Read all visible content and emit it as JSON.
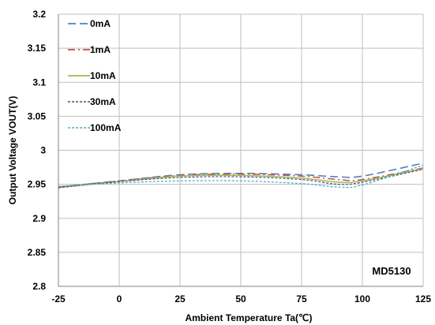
{
  "chart_data": {
    "type": "line",
    "xlabel": "Ambient Temperature Ta(℃)",
    "ylabel": "Output Voltage VOUT(V)",
    "xlim": [
      -25,
      125
    ],
    "ylim": [
      2.8,
      3.2
    ],
    "xticks": [
      -25,
      0,
      25,
      50,
      75,
      100,
      125
    ],
    "yticks": [
      2.8,
      2.85,
      2.9,
      2.95,
      3.0,
      3.05,
      3.1,
      3.15,
      3.2
    ],
    "xtick_labels": [
      "-25",
      "0",
      "25",
      "50",
      "75",
      "100",
      "125"
    ],
    "ytick_labels": [
      "2.8",
      "2.85",
      "2.9",
      "2.95",
      "3",
      "3.05",
      "3.1",
      "3.15",
      "3.2"
    ],
    "grid": true,
    "legend_position": "top-left",
    "annotation": "MD5130",
    "x": [
      -25,
      0,
      25,
      50,
      75,
      90,
      100,
      125
    ],
    "series": [
      {
        "name": "0mA",
        "color": "#4F81BD",
        "dash": "10,5",
        "width": 1.6,
        "values": [
          2.946,
          2.955,
          2.964,
          2.966,
          2.964,
          2.961,
          2.962,
          2.981
        ]
      },
      {
        "name": "1mA",
        "color": "#C0504D",
        "dash": "9,4,2,4",
        "width": 1.5,
        "values": [
          2.946,
          2.955,
          2.963,
          2.965,
          2.962,
          2.957,
          2.957,
          2.974
        ]
      },
      {
        "name": "10mA",
        "color": "#9BBB59",
        "dash": "",
        "width": 1.5,
        "values": [
          2.945,
          2.954,
          2.962,
          2.963,
          2.959,
          2.953,
          2.955,
          2.973
        ]
      },
      {
        "name": "30mA",
        "color": "#5A4A7A",
        "dash": "3,2",
        "width": 1.2,
        "values": [
          2.945,
          2.954,
          2.96,
          2.961,
          2.957,
          2.95,
          2.953,
          2.972
        ]
      },
      {
        "name": "100mA",
        "color": "#4BACC6",
        "dash": "3,2",
        "width": 1.2,
        "values": [
          2.947,
          2.952,
          2.955,
          2.955,
          2.951,
          2.946,
          2.949,
          2.978
        ]
      }
    ]
  }
}
